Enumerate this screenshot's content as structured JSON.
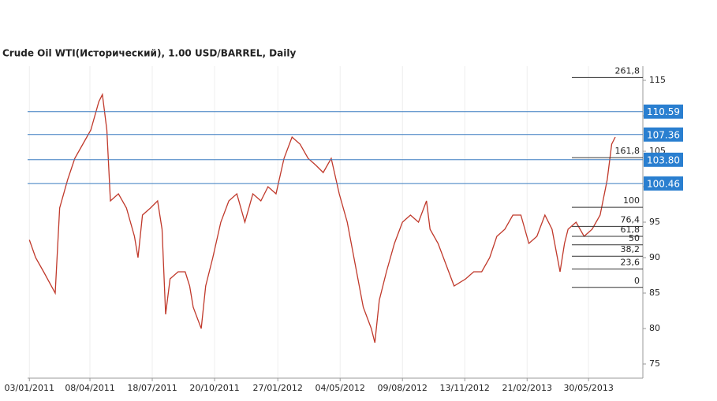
{
  "chart_data": {
    "type": "line",
    "title": "Crude Oil WTI(Исторический), 1.00 USD/BARREL, Daily",
    "x": [
      0,
      7,
      16,
      29,
      34,
      43,
      51,
      60,
      69,
      78,
      82,
      87,
      91,
      100,
      109,
      118,
      122,
      127,
      136,
      144,
      149,
      153,
      158,
      167,
      175,
      180,
      184,
      193,
      198,
      206,
      215,
      224,
      233,
      242,
      251,
      260,
      268,
      277,
      286,
      295,
      304,
      313,
      322,
      330,
      339,
      348,
      357,
      366,
      375,
      384,
      388,
      393,
      401,
      410,
      419,
      428,
      437,
      446,
      450,
      459,
      468,
      477,
      490,
      499,
      508,
      517,
      525,
      534,
      543,
      552,
      561,
      570,
      579,
      587,
      596,
      601,
      605,
      614,
      623,
      632,
      641,
      649,
      654,
      658
    ],
    "series": [
      {
        "name": "Crude Oil WTI",
        "color": "#c0392b",
        "values": [
          92.5,
          90,
          88,
          85,
          97,
          101,
          104,
          106,
          108,
          112,
          113,
          108,
          98,
          99,
          97,
          93,
          90,
          96,
          97,
          98,
          94,
          82,
          87,
          88,
          88,
          86,
          83,
          80,
          86,
          90,
          95,
          98,
          99,
          95,
          99,
          98,
          100,
          99,
          104,
          107,
          106,
          104,
          103,
          102,
          104,
          99,
          95,
          89,
          83,
          80,
          78,
          84,
          88,
          92,
          95,
          96,
          95,
          98,
          94,
          92,
          89,
          86,
          87,
          88,
          88,
          90,
          93,
          94,
          96,
          96,
          92,
          93,
          96,
          94,
          88,
          92,
          94,
          95,
          93,
          94,
          96,
          101,
          106,
          107
        ]
      }
    ],
    "xlim": [
      -2,
      689
    ],
    "xticks": [
      {
        "value": 0,
        "label": "03/01/2011"
      },
      {
        "value": 68,
        "label": "08/04/2011"
      },
      {
        "value": 138,
        "label": "18/07/2011"
      },
      {
        "value": 208,
        "label": "20/10/2011"
      },
      {
        "value": 279,
        "label": "27/01/2012"
      },
      {
        "value": 349,
        "label": "04/05/2012"
      },
      {
        "value": 419,
        "label": "09/08/2012"
      },
      {
        "value": 489,
        "label": "13/11/2012"
      },
      {
        "value": 559,
        "label": "21/02/2013"
      },
      {
        "value": 628,
        "label": "30/05/2013"
      }
    ],
    "ylim": [
      73,
      117
    ],
    "yticks": [
      75,
      80,
      85,
      90,
      95,
      100,
      105,
      110,
      115
    ],
    "levels": [
      {
        "value": 110.59,
        "label": "110.59"
      },
      {
        "value": 107.36,
        "label": "107.36"
      },
      {
        "value": 103.8,
        "label": "103.80"
      },
      {
        "value": 100.46,
        "label": "100.46"
      }
    ],
    "fibonacci": [
      {
        "label": "261,8",
        "price": 115.4
      },
      {
        "label": "161,8",
        "price": 104.1
      },
      {
        "label": "100",
        "price": 97.1
      },
      {
        "label": "76,4",
        "price": 94.4
      },
      {
        "label": "61,8",
        "price": 93.0
      },
      {
        "label": "50",
        "price": 91.8
      },
      {
        "label": "38,2",
        "price": 90.2
      },
      {
        "label": "23,6",
        "price": 88.4
      },
      {
        "label": "0",
        "price": 85.8
      }
    ]
  }
}
